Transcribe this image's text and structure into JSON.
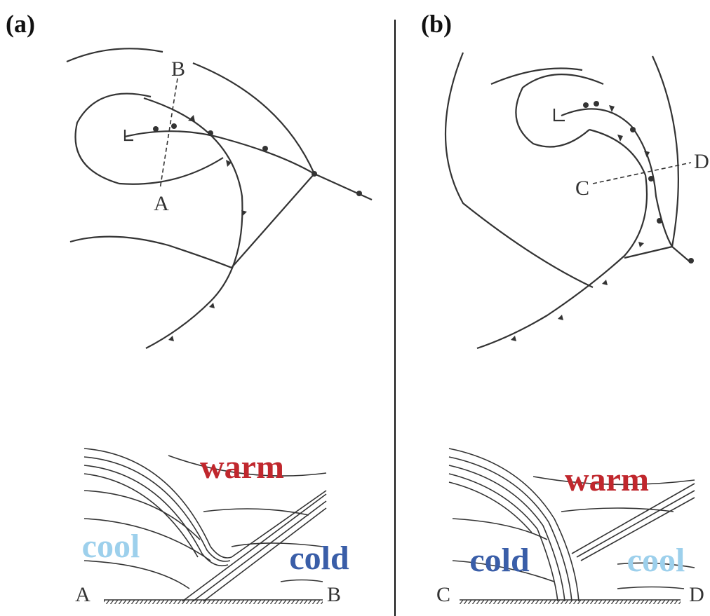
{
  "panels": [
    {
      "label": "(a)",
      "map_points": [
        "B",
        "A"
      ],
      "section": {
        "upper": "warm",
        "left": "cool",
        "right": "cold",
        "ends": [
          "A",
          "B"
        ]
      }
    },
    {
      "label": "(b)",
      "map_points": [
        "C",
        "D"
      ],
      "section": {
        "upper": "warm",
        "left": "cold",
        "right": "cool",
        "ends": [
          "C",
          "D"
        ]
      }
    }
  ]
}
